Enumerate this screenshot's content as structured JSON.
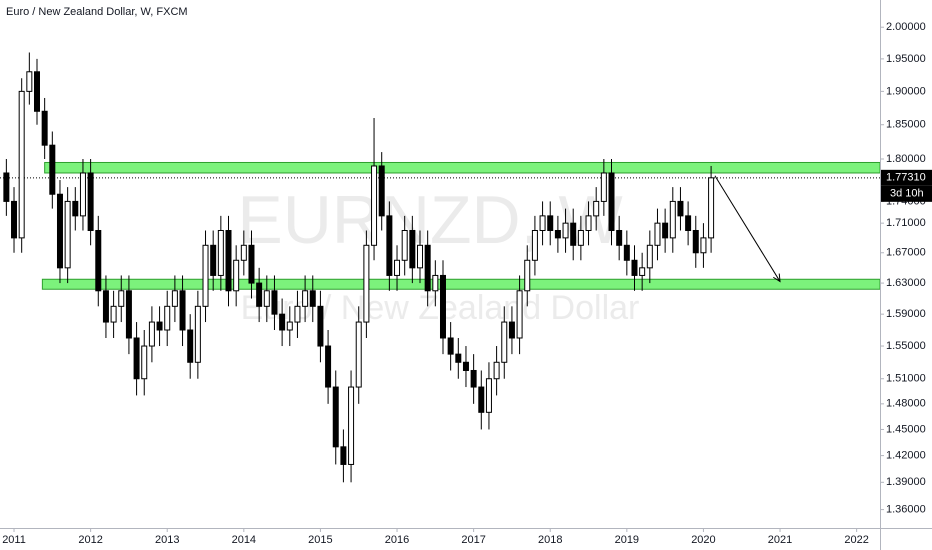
{
  "chart_data": {
    "type": "candlestick",
    "title": "Euro / New Zealand Dollar, W, FXCM",
    "watermark": "EURNZD, W",
    "watermark_subtitle": "Euro / New Zealand Dollar",
    "log_scale": true,
    "up_color": "#ffffff",
    "down_color": "#000000",
    "edge_color": "#000000",
    "x": [
      2010.9,
      2011.0,
      2011.1,
      2011.2,
      2011.3,
      2011.4,
      2011.5,
      2011.6,
      2011.7,
      2011.8,
      2011.9,
      2012.0,
      2012.1,
      2012.2,
      2012.3,
      2012.4,
      2012.5,
      2012.6,
      2012.7,
      2012.8,
      2012.9,
      2013.0,
      2013.1,
      2013.2,
      2013.3,
      2013.4,
      2013.5,
      2013.6,
      2013.7,
      2013.8,
      2013.9,
      2014.0,
      2014.1,
      2014.2,
      2014.3,
      2014.4,
      2014.5,
      2014.6,
      2014.7,
      2014.8,
      2014.9,
      2015.0,
      2015.1,
      2015.2,
      2015.3,
      2015.4,
      2015.5,
      2015.6,
      2015.7,
      2015.8,
      2015.9,
      2016.0,
      2016.1,
      2016.2,
      2016.3,
      2016.4,
      2016.5,
      2016.6,
      2016.7,
      2016.8,
      2016.9,
      2017.0,
      2017.1,
      2017.2,
      2017.3,
      2017.4,
      2017.5,
      2017.6,
      2017.7,
      2017.8,
      2017.9,
      2018.0,
      2018.1,
      2018.2,
      2018.3,
      2018.4,
      2018.5,
      2018.6,
      2018.7,
      2018.8,
      2018.9,
      2019.0,
      2019.1,
      2019.2,
      2019.3,
      2019.4,
      2019.5,
      2019.6,
      2019.7,
      2019.8,
      2019.9,
      2020.0,
      2020.1
    ],
    "open": [
      1.78,
      1.74,
      1.69,
      1.9,
      1.93,
      1.87,
      1.82,
      1.75,
      1.65,
      1.74,
      1.72,
      1.78,
      1.7,
      1.62,
      1.58,
      1.6,
      1.62,
      1.56,
      1.51,
      1.55,
      1.58,
      1.57,
      1.6,
      1.62,
      1.57,
      1.53,
      1.6,
      1.68,
      1.64,
      1.7,
      1.62,
      1.66,
      1.68,
      1.63,
      1.6,
      1.62,
      1.59,
      1.57,
      1.58,
      1.6,
      1.62,
      1.6,
      1.55,
      1.5,
      1.43,
      1.41,
      1.5,
      1.58,
      1.68,
      1.79,
      1.72,
      1.64,
      1.66,
      1.7,
      1.65,
      1.68,
      1.62,
      1.64,
      1.56,
      1.54,
      1.53,
      1.52,
      1.5,
      1.47,
      1.51,
      1.53,
      1.58,
      1.56,
      1.62,
      1.66,
      1.7,
      1.72,
      1.7,
      1.69,
      1.71,
      1.68,
      1.7,
      1.72,
      1.74,
      1.78,
      1.7,
      1.68,
      1.66,
      1.64,
      1.65,
      1.68,
      1.71,
      1.69,
      1.74,
      1.72,
      1.7,
      1.67,
      1.69
    ],
    "high": [
      1.8,
      1.76,
      1.92,
      1.96,
      1.95,
      1.89,
      1.84,
      1.77,
      1.76,
      1.76,
      1.8,
      1.8,
      1.72,
      1.64,
      1.62,
      1.64,
      1.64,
      1.58,
      1.57,
      1.6,
      1.6,
      1.62,
      1.64,
      1.64,
      1.59,
      1.62,
      1.7,
      1.7,
      1.72,
      1.72,
      1.68,
      1.7,
      1.7,
      1.65,
      1.64,
      1.64,
      1.61,
      1.6,
      1.62,
      1.64,
      1.64,
      1.62,
      1.57,
      1.52,
      1.45,
      1.52,
      1.6,
      1.7,
      1.86,
      1.81,
      1.74,
      1.68,
      1.72,
      1.72,
      1.7,
      1.7,
      1.66,
      1.66,
      1.58,
      1.56,
      1.55,
      1.54,
      1.52,
      1.53,
      1.55,
      1.6,
      1.6,
      1.64,
      1.68,
      1.72,
      1.74,
      1.74,
      1.72,
      1.73,
      1.73,
      1.72,
      1.74,
      1.76,
      1.8,
      1.8,
      1.72,
      1.7,
      1.68,
      1.67,
      1.7,
      1.73,
      1.73,
      1.76,
      1.76,
      1.74,
      1.72,
      1.71,
      1.79
    ],
    "low": [
      1.72,
      1.67,
      1.67,
      1.88,
      1.85,
      1.8,
      1.73,
      1.63,
      1.63,
      1.7,
      1.7,
      1.68,
      1.6,
      1.56,
      1.56,
      1.58,
      1.54,
      1.49,
      1.49,
      1.53,
      1.55,
      1.55,
      1.58,
      1.55,
      1.51,
      1.51,
      1.58,
      1.62,
      1.62,
      1.6,
      1.6,
      1.64,
      1.61,
      1.58,
      1.58,
      1.57,
      1.55,
      1.55,
      1.56,
      1.58,
      1.58,
      1.53,
      1.48,
      1.41,
      1.39,
      1.39,
      1.48,
      1.56,
      1.66,
      1.7,
      1.62,
      1.62,
      1.64,
      1.63,
      1.63,
      1.6,
      1.6,
      1.54,
      1.52,
      1.51,
      1.5,
      1.48,
      1.45,
      1.45,
      1.49,
      1.51,
      1.54,
      1.54,
      1.6,
      1.64,
      1.68,
      1.68,
      1.67,
      1.67,
      1.66,
      1.66,
      1.68,
      1.7,
      1.72,
      1.68,
      1.66,
      1.64,
      1.62,
      1.62,
      1.63,
      1.66,
      1.67,
      1.67,
      1.7,
      1.68,
      1.65,
      1.65,
      1.67
    ],
    "close": [
      1.74,
      1.69,
      1.9,
      1.93,
      1.87,
      1.82,
      1.75,
      1.65,
      1.74,
      1.72,
      1.78,
      1.7,
      1.62,
      1.58,
      1.6,
      1.62,
      1.56,
      1.51,
      1.55,
      1.58,
      1.57,
      1.6,
      1.62,
      1.57,
      1.53,
      1.6,
      1.68,
      1.64,
      1.7,
      1.62,
      1.66,
      1.68,
      1.63,
      1.6,
      1.62,
      1.59,
      1.57,
      1.58,
      1.6,
      1.62,
      1.6,
      1.55,
      1.5,
      1.43,
      1.41,
      1.5,
      1.58,
      1.68,
      1.79,
      1.72,
      1.64,
      1.66,
      1.7,
      1.65,
      1.68,
      1.62,
      1.64,
      1.56,
      1.54,
      1.53,
      1.52,
      1.5,
      1.47,
      1.51,
      1.53,
      1.58,
      1.56,
      1.62,
      1.66,
      1.7,
      1.72,
      1.7,
      1.69,
      1.71,
      1.68,
      1.7,
      1.72,
      1.74,
      1.78,
      1.7,
      1.68,
      1.66,
      1.64,
      1.65,
      1.68,
      1.71,
      1.69,
      1.74,
      1.72,
      1.7,
      1.67,
      1.69,
      1.7731
    ],
    "xlim": [
      2010.817,
      2022.305
    ],
    "ylim": [
      1.338,
      2.044
    ],
    "xticks": [
      2011,
      2012,
      2013,
      2014,
      2015,
      2016,
      2017,
      2018,
      2019,
      2020,
      2021,
      2022
    ],
    "yticks": [
      {
        "value": 2.0,
        "label": "2.00000"
      },
      {
        "value": 1.95,
        "label": "1.95000"
      },
      {
        "value": 1.9,
        "label": "1.90000"
      },
      {
        "value": 1.85,
        "label": "1.85000"
      },
      {
        "value": 1.8,
        "label": "1.80000"
      },
      {
        "value": 1.74,
        "label": "1.74000"
      },
      {
        "value": 1.71,
        "label": "1.71000"
      },
      {
        "value": 1.67,
        "label": "1.67000"
      },
      {
        "value": 1.63,
        "label": "1.63000"
      },
      {
        "value": 1.59,
        "label": "1.59000"
      },
      {
        "value": 1.55,
        "label": "1.55000"
      },
      {
        "value": 1.51,
        "label": "1.51000"
      },
      {
        "value": 1.48,
        "label": "1.48000"
      },
      {
        "value": 1.45,
        "label": "1.45000"
      },
      {
        "value": 1.42,
        "label": "1.42000"
      },
      {
        "value": 1.39,
        "label": "1.39000"
      },
      {
        "value": 1.36,
        "label": "1.36000"
      }
    ],
    "last_price": {
      "value": 1.7731,
      "label": "1.77310"
    },
    "countdown": "3d 10h",
    "zones": [
      {
        "from": 2011.4,
        "low": 1.78,
        "high": 1.795,
        "color": "#7cf27c"
      },
      {
        "from": 2011.37,
        "low": 1.622,
        "high": 1.635,
        "color": "#7cf27c"
      }
    ],
    "arrow": {
      "x": [
        2020.15,
        2021.0
      ],
      "y": [
        1.776,
        1.632
      ]
    }
  }
}
